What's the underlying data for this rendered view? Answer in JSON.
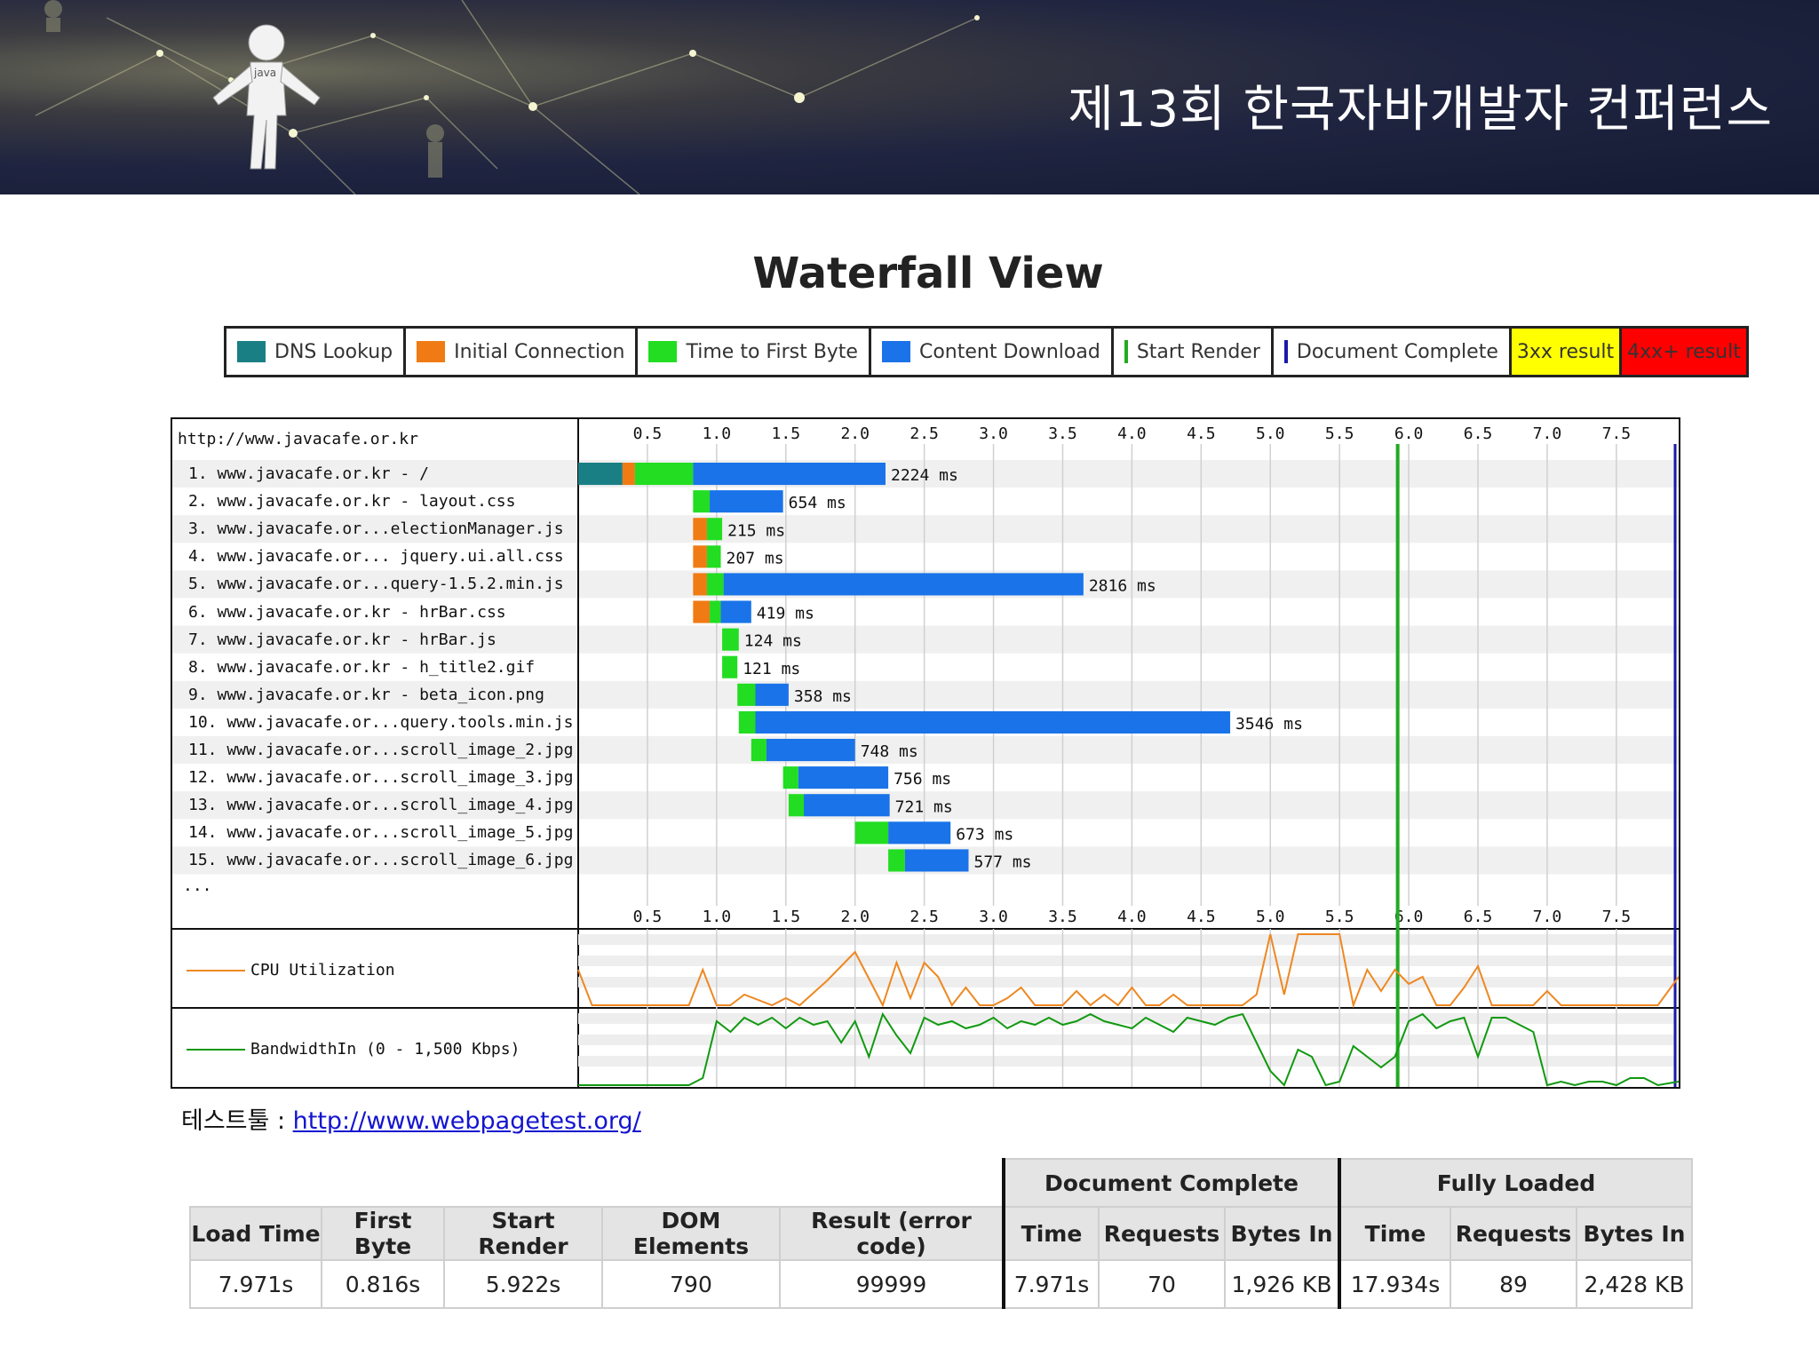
{
  "banner": {
    "title": "제13회 한국자바개발자 컨퍼런스",
    "figure_text": "java"
  },
  "waterfall_title": "Waterfall View",
  "legend": [
    {
      "label": "DNS Lookup",
      "color": "#1a7f85",
      "kind": "swatch"
    },
    {
      "label": "Initial Connection",
      "color": "#f07b14",
      "kind": "swatch"
    },
    {
      "label": "Time to First Byte",
      "color": "#22dd22",
      "kind": "swatch"
    },
    {
      "label": "Content Download",
      "color": "#1a73e8",
      "kind": "swatch"
    },
    {
      "label": "Start Render",
      "color": "#22aa22",
      "kind": "line"
    },
    {
      "label": "Document Complete",
      "color": "#1a1aa8",
      "kind": "line"
    },
    {
      "label": "3xx result",
      "color": "#ffff00",
      "kind": "fill"
    },
    {
      "label": "4xx+ result",
      "color": "#ff0000",
      "kind": "fill"
    }
  ],
  "url_header": "http://www.javacafe.or.kr",
  "ellipsis": "...",
  "chart_data": {
    "type": "bar",
    "x_ticks": [
      "0.5",
      "1.0",
      "1.5",
      "2.0",
      "2.5",
      "3.0",
      "3.5",
      "4.0",
      "4.5",
      "5.0",
      "5.5",
      "6.0",
      "6.5",
      "7.0",
      "7.5"
    ],
    "xlim": [
      0,
      7.95
    ],
    "start_render": 5.92,
    "requests": [
      {
        "label": "1. www.javacafe.or.kr - /",
        "ms": "2224 ms",
        "dns": [
          0,
          0.32
        ],
        "conn": [
          0.32,
          0.41
        ],
        "ttfb": [
          0.41,
          0.83
        ],
        "dl": [
          0.83,
          2.22
        ]
      },
      {
        "label": "2. www.javacafe.or.kr - layout.css",
        "ms": "654 ms",
        "ttfb": [
          0.83,
          0.95
        ],
        "dl": [
          0.95,
          1.48
        ]
      },
      {
        "label": "3. www.javacafe.or...electionManager.js",
        "ms": "215 ms",
        "conn": [
          0.83,
          0.93
        ],
        "ttfb": [
          0.93,
          1.04
        ]
      },
      {
        "label": "4. www.javacafe.or... jquery.ui.all.css",
        "ms": "207 ms",
        "conn": [
          0.83,
          0.93
        ],
        "ttfb": [
          0.93,
          1.03
        ]
      },
      {
        "label": "5. www.javacafe.or...query-1.5.2.min.js",
        "ms": "2816 ms",
        "conn": [
          0.83,
          0.93
        ],
        "ttfb": [
          0.93,
          1.05
        ],
        "dl": [
          1.05,
          3.65
        ]
      },
      {
        "label": "6. www.javacafe.or.kr - hrBar.css",
        "ms": "419 ms",
        "conn": [
          0.83,
          0.95
        ],
        "ttfb": [
          0.95,
          1.03
        ],
        "dl": [
          1.03,
          1.25
        ]
      },
      {
        "label": "7. www.javacafe.or.kr - hrBar.js",
        "ms": "124 ms",
        "ttfb": [
          1.04,
          1.16
        ]
      },
      {
        "label": "8. www.javacafe.or.kr - h_title2.gif",
        "ms": "121 ms",
        "ttfb": [
          1.04,
          1.15
        ]
      },
      {
        "label": "9. www.javacafe.or.kr - beta_icon.png",
        "ms": "358 ms",
        "ttfb": [
          1.15,
          1.28
        ],
        "dl": [
          1.28,
          1.52
        ]
      },
      {
        "label": "10. www.javacafe.or...query.tools.min.js",
        "ms": "3546 ms",
        "ttfb": [
          1.16,
          1.28
        ],
        "dl": [
          1.28,
          4.71
        ]
      },
      {
        "label": "11. www.javacafe.or...scroll_image_2.jpg",
        "ms": "748 ms",
        "ttfb": [
          1.25,
          1.36
        ],
        "dl": [
          1.36,
          2.0
        ]
      },
      {
        "label": "12. www.javacafe.or...scroll_image_3.jpg",
        "ms": "756 ms",
        "ttfb": [
          1.48,
          1.59
        ],
        "dl": [
          1.59,
          2.24
        ]
      },
      {
        "label": "13. www.javacafe.or...scroll_image_4.jpg",
        "ms": "721 ms",
        "ttfb": [
          1.52,
          1.63
        ],
        "dl": [
          1.63,
          2.25
        ]
      },
      {
        "label": "14. www.javacafe.or...scroll_image_5.jpg",
        "ms": "673 ms",
        "ttfb": [
          2.0,
          2.24
        ],
        "dl": [
          2.24,
          2.69
        ]
      },
      {
        "label": "15. www.javacafe.or...scroll_image_6.jpg",
        "ms": "577 ms",
        "ttfb": [
          2.24,
          2.36
        ],
        "dl": [
          2.36,
          2.82
        ]
      }
    ],
    "cpu": {
      "label": "CPU Utilization",
      "color": "#ee8822",
      "x": [
        0,
        0.1,
        0.8,
        0.9,
        1.0,
        1.1,
        1.2,
        1.4,
        1.5,
        1.6,
        1.8,
        2.0,
        2.2,
        2.3,
        2.4,
        2.5,
        2.6,
        2.7,
        2.8,
        2.9,
        3.0,
        3.1,
        3.2,
        3.3,
        3.4,
        3.5,
        3.6,
        3.7,
        3.8,
        3.9,
        4.0,
        4.1,
        4.2,
        4.3,
        4.4,
        4.5,
        4.6,
        4.7,
        4.8,
        4.9,
        5.0,
        5.1,
        5.2,
        5.3,
        5.4,
        5.5,
        5.6,
        5.7,
        5.8,
        5.9,
        6.0,
        6.1,
        6.2,
        6.3,
        6.4,
        6.5,
        6.6,
        6.7,
        6.8,
        6.9,
        7.0,
        7.1,
        7.2,
        7.3,
        7.4,
        7.5,
        7.6,
        7.7,
        7.8,
        7.95
      ],
      "y": [
        50,
        0,
        0,
        50,
        0,
        0,
        15,
        0,
        10,
        0,
        35,
        75,
        0,
        60,
        10,
        60,
        40,
        0,
        25,
        0,
        0,
        10,
        25,
        0,
        0,
        0,
        20,
        0,
        15,
        0,
        25,
        0,
        0,
        15,
        0,
        0,
        0,
        0,
        0,
        15,
        100,
        15,
        100,
        100,
        100,
        100,
        0,
        50,
        20,
        50,
        30,
        40,
        0,
        0,
        25,
        55,
        0,
        0,
        0,
        0,
        20,
        0,
        0,
        0,
        0,
        0,
        0,
        0,
        0,
        40
      ]
    },
    "bandwidth": {
      "label": "BandwidthIn (0 - 1,500 Kbps)",
      "color": "#119911",
      "x": [
        0,
        0.1,
        0.2,
        0.4,
        0.8,
        0.9,
        1.0,
        1.1,
        1.2,
        1.3,
        1.4,
        1.5,
        1.6,
        1.7,
        1.8,
        1.9,
        2.0,
        2.1,
        2.2,
        2.3,
        2.4,
        2.5,
        2.6,
        2.7,
        2.8,
        2.9,
        3.0,
        3.1,
        3.2,
        3.3,
        3.4,
        3.5,
        3.6,
        3.7,
        3.8,
        3.9,
        4.0,
        4.1,
        4.2,
        4.3,
        4.4,
        4.5,
        4.6,
        4.7,
        4.8,
        4.9,
        5.0,
        5.1,
        5.2,
        5.3,
        5.4,
        5.5,
        5.6,
        5.7,
        5.8,
        5.9,
        6.0,
        6.1,
        6.2,
        6.3,
        6.4,
        6.5,
        6.6,
        6.7,
        6.8,
        6.9,
        7.0,
        7.1,
        7.2,
        7.3,
        7.4,
        7.5,
        7.6,
        7.7,
        7.8,
        7.95
      ],
      "y": [
        0,
        0,
        0,
        0,
        0,
        10,
        90,
        75,
        95,
        85,
        95,
        80,
        95,
        85,
        90,
        60,
        90,
        40,
        100,
        70,
        45,
        95,
        85,
        90,
        80,
        85,
        95,
        80,
        90,
        85,
        95,
        85,
        90,
        100,
        90,
        85,
        80,
        95,
        85,
        75,
        95,
        90,
        85,
        95,
        100,
        60,
        20,
        0,
        50,
        40,
        0,
        5,
        55,
        40,
        25,
        40,
        90,
        100,
        80,
        90,
        95,
        40,
        95,
        95,
        85,
        75,
        0,
        5,
        0,
        5,
        5,
        0,
        10,
        10,
        0,
        5
      ]
    }
  },
  "tool": {
    "label": "테스트툴 : ",
    "link": "http://www.webpagetest.org/"
  },
  "results": {
    "group_doc": "Document Complete",
    "group_full": "Fully Loaded",
    "headers": [
      "Load Time",
      "First Byte",
      "Start Render",
      "DOM Elements",
      "Result (error code)",
      "Time",
      "Requests",
      "Bytes In",
      "Time",
      "Requests",
      "Bytes In"
    ],
    "values": [
      "7.971s",
      "0.816s",
      "5.922s",
      "790",
      "99999",
      "7.971s",
      "70",
      "1,926 KB",
      "17.934s",
      "89",
      "2,428 KB"
    ]
  }
}
